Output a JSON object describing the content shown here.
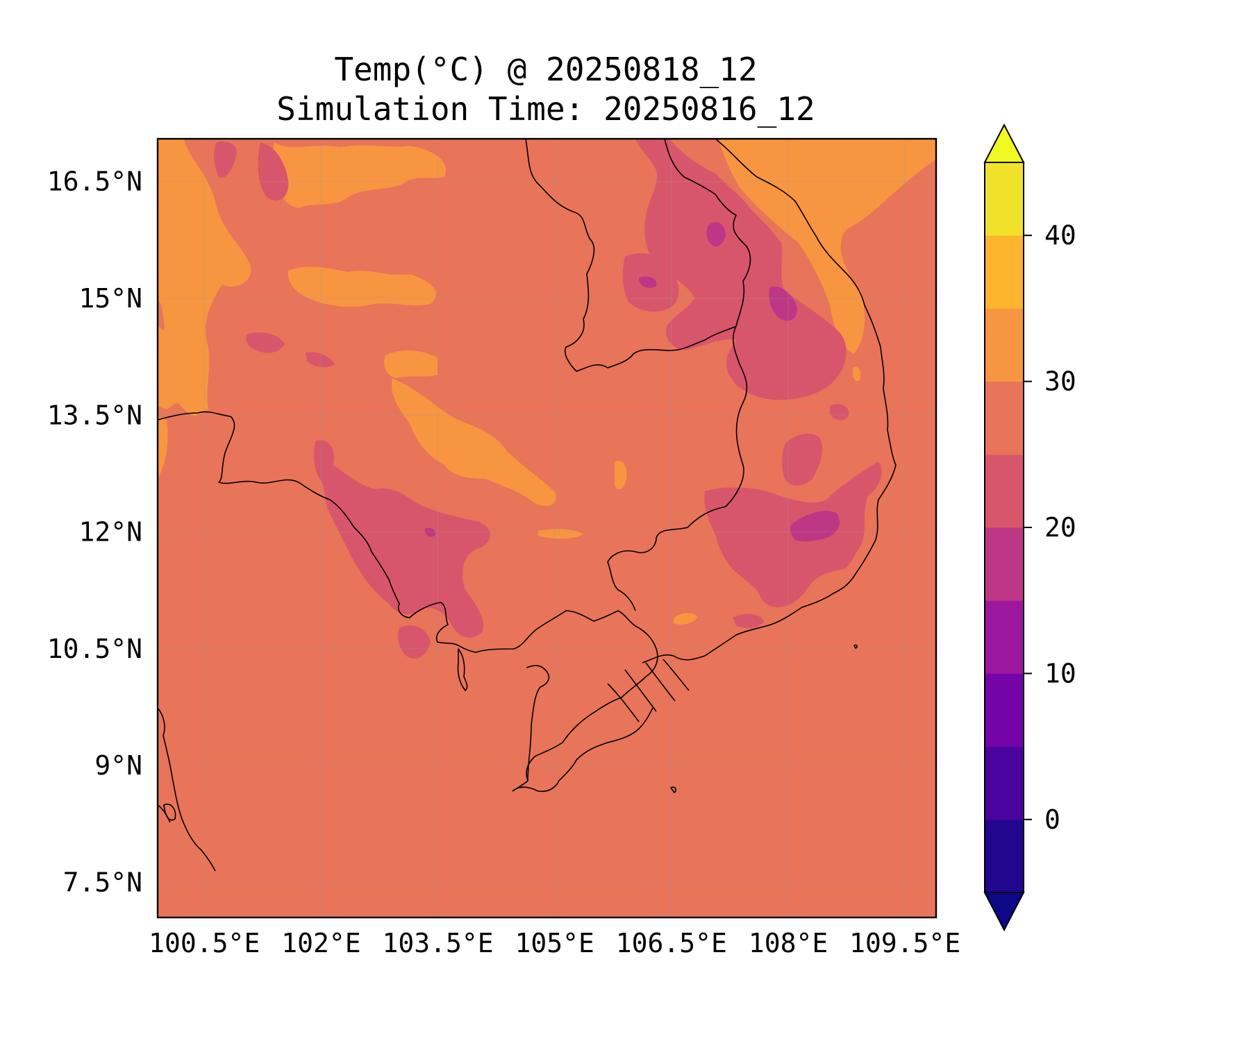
{
  "title": {
    "line1": "Temp(°C) @ 20250818_12",
    "line2": "Simulation Time: 20250816_12"
  },
  "map": {
    "lon_range": [
      99.9,
      109.9
    ],
    "lat_range": [
      7.05,
      17.05
    ],
    "lon_ticks": [
      {
        "value": 100.5,
        "label": "100.5°E"
      },
      {
        "value": 102.0,
        "label": "102°E"
      },
      {
        "value": 103.5,
        "label": "103.5°E"
      },
      {
        "value": 105.0,
        "label": "105°E"
      },
      {
        "value": 106.5,
        "label": "106.5°E"
      },
      {
        "value": 108.0,
        "label": "108°E"
      },
      {
        "value": 109.5,
        "label": "109.5°E"
      }
    ],
    "lat_ticks": [
      {
        "value": 16.5,
        "label": "16.5°N"
      },
      {
        "value": 15.0,
        "label": "15°N"
      },
      {
        "value": 13.5,
        "label": "13.5°N"
      },
      {
        "value": 12.0,
        "label": "12°N"
      },
      {
        "value": 10.5,
        "label": "10.5°N"
      },
      {
        "value": 9.0,
        "label": "9°N"
      },
      {
        "value": 7.5,
        "label": "7.5°N"
      }
    ],
    "gridlines": true,
    "background_level_color": "#e8745a"
  },
  "colorbar": {
    "min": -5,
    "max": 45,
    "extend": "both",
    "ticks": [
      {
        "value": 0,
        "label": "0"
      },
      {
        "value": 10,
        "label": "10"
      },
      {
        "value": 20,
        "label": "20"
      },
      {
        "value": 30,
        "label": "30"
      },
      {
        "value": 40,
        "label": "40"
      }
    ],
    "levels": [
      {
        "from": -5,
        "to": 0,
        "color": "#23068f"
      },
      {
        "from": 0,
        "to": 5,
        "color": "#4b04a0"
      },
      {
        "from": 5,
        "to": 10,
        "color": "#7404a8"
      },
      {
        "from": 10,
        "to": 15,
        "color": "#9c179e"
      },
      {
        "from": 15,
        "to": 20,
        "color": "#bd3786"
      },
      {
        "from": 20,
        "to": 25,
        "color": "#d8566b"
      },
      {
        "from": 25,
        "to": 30,
        "color": "#e8745a"
      },
      {
        "from": 30,
        "to": 35,
        "color": "#f89540"
      },
      {
        "from": 35,
        "to": 40,
        "color": "#fdb42f"
      },
      {
        "from": 40,
        "to": 45,
        "color": "#f0e22a"
      }
    ],
    "under_color": "#0d0887",
    "over_color": "#f0f921"
  }
}
